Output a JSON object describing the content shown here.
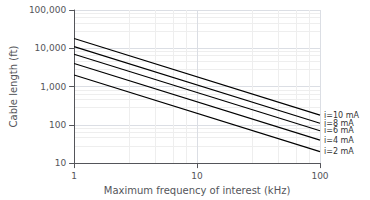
{
  "chart_data": {
    "type": "line",
    "xlabel": "Maximum frequency of interest (kHz)",
    "ylabel": "Cable length (ft)",
    "x": [
      1,
      100
    ],
    "xlim": [
      1,
      100
    ],
    "ylim": [
      10,
      100000
    ],
    "xticks": [
      1,
      10,
      100
    ],
    "yticks": [
      10,
      100,
      {
        "value": 1000,
        "label": "1,000"
      },
      {
        "value": 10000,
        "label": "10,000"
      },
      {
        "value": 100000,
        "label": "100,000"
      }
    ],
    "log": true,
    "grid": true,
    "series": [
      {
        "name": "i=10 mA",
        "color": "#000000",
        "values": [
          18000,
          180
        ]
      },
      {
        "name": "i=8 mA",
        "color": "#000000",
        "values": [
          11000,
          110
        ]
      },
      {
        "name": "i=6 mA",
        "color": "#000000",
        "values": [
          7000,
          70
        ]
      },
      {
        "name": "i=4 mA",
        "color": "#000000",
        "values": [
          4000,
          40
        ]
      },
      {
        "name": "i=2 mA",
        "color": "#000000",
        "values": [
          2000,
          20
        ]
      }
    ]
  }
}
